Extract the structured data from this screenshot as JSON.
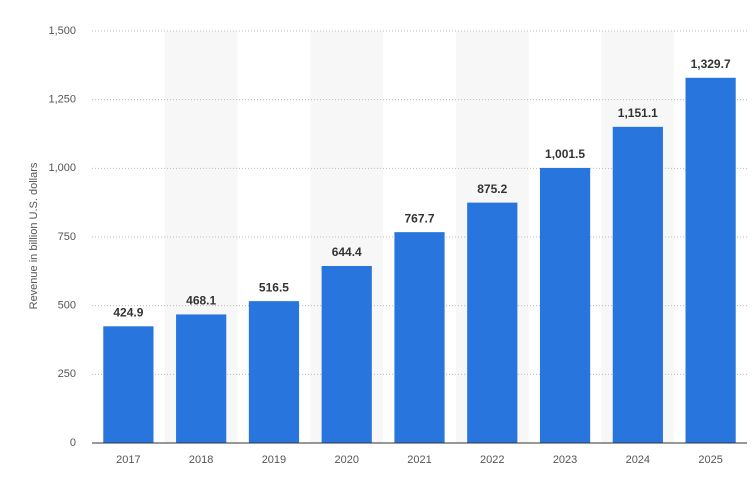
{
  "chart_data": {
    "type": "bar",
    "y_label": "Revenue in billion U.S. dollars",
    "categories": [
      "2017",
      "2018",
      "2019",
      "2020",
      "2021",
      "2022",
      "2023",
      "2024",
      "2025"
    ],
    "values": [
      424.9,
      468.1,
      516.5,
      644.4,
      767.7,
      875.2,
      1001.5,
      1151.1,
      1329.7
    ],
    "value_labels": [
      "424.9",
      "468.1",
      "516.5",
      "644.4",
      "767.7",
      "875.2",
      "1,001.5",
      "1,151.1",
      "1,329.7"
    ],
    "color": "#2876dd",
    "ylim": [
      0,
      1500
    ],
    "yticks": [
      0,
      250,
      500,
      750,
      {
        "value": 1000,
        "label": "1,000"
      },
      {
        "value": 1250,
        "label": "1,250"
      },
      {
        "value": 1500,
        "label": "1,500"
      }
    ],
    "grid": true
  }
}
